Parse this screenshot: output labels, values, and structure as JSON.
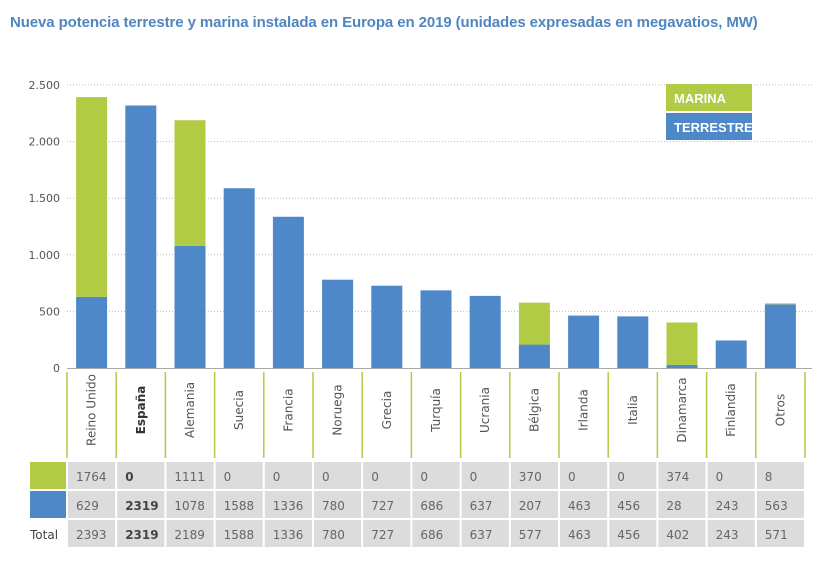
{
  "chart_data": {
    "type": "bar",
    "stacked": true,
    "title": "Nueva potencia terrestre y marina instalada en Europa en 2019 (unidades expresadas en megavatios, MW)",
    "xlabel": "",
    "ylabel": "",
    "ylim": [
      0,
      2500
    ],
    "yticks": [
      0,
      500,
      1000,
      1500,
      2000,
      2500
    ],
    "ytick_labels": [
      "0",
      "500",
      "1.000",
      "1.500",
      "2.000",
      "2.500"
    ],
    "grid": true,
    "legend_position": "top-right",
    "categories": [
      "Reino Unido",
      "España",
      "Alemania",
      "Suecia",
      "Francia",
      "Noruega",
      "Grecia",
      "Turquía",
      "Ucrania",
      "Bélgica",
      "Irlanda",
      "Italia",
      "Dinamarca",
      "Finlandia",
      "Otros"
    ],
    "highlight_category": "España",
    "series": [
      {
        "name": "TERRESTRE",
        "color": "#4f88c9",
        "values": [
          629,
          2319,
          1078,
          1588,
          1336,
          780,
          727,
          686,
          637,
          207,
          463,
          456,
          28,
          243,
          563
        ]
      },
      {
        "name": "MARINA",
        "color": "#b2cb45",
        "values": [
          1764,
          0,
          1111,
          0,
          0,
          0,
          0,
          0,
          0,
          370,
          0,
          0,
          374,
          0,
          8
        ]
      }
    ],
    "totals": [
      2393,
      2319,
      2189,
      1588,
      1336,
      780,
      727,
      686,
      637,
      577,
      463,
      456,
      402,
      243,
      571
    ],
    "table": {
      "row_labels": [
        "",
        "",
        "Total"
      ],
      "rows": [
        {
          "series": "MARINA",
          "values": [
            "1764",
            "0",
            "1111",
            "0",
            "0",
            "0",
            "0",
            "0",
            "0",
            "370",
            "0",
            "0",
            "374",
            "0",
            "8"
          ]
        },
        {
          "series": "TERRESTRE",
          "values": [
            "629",
            "2319",
            "1078",
            "1588",
            "1336",
            "780",
            "727",
            "686",
            "637",
            "207",
            "463",
            "456",
            "28",
            "243",
            "563"
          ]
        },
        {
          "series": "Total",
          "values": [
            "2393",
            "2319",
            "2189",
            "1588",
            "1336",
            "780",
            "727",
            "686",
            "637",
            "577",
            "463",
            "456",
            "402",
            "243",
            "571"
          ]
        }
      ]
    }
  },
  "colors": {
    "title": "#4f86c0",
    "terrestre": "#4f88c9",
    "marina": "#b2cb45",
    "table_cell": "#dcdcdc",
    "separator": "#b2cb45"
  },
  "table_total_label": "Total"
}
